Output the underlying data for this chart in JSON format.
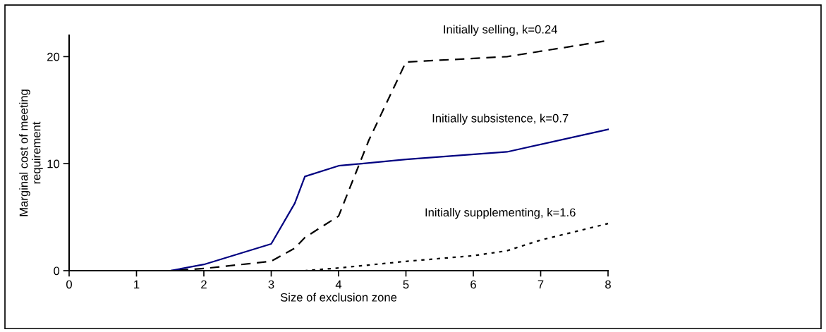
{
  "chart_data": {
    "type": "line",
    "xlabel": "Size of exclusion zone",
    "ylabel": "Marginal cost of meeting\nrequirement",
    "xlim": [
      0,
      8
    ],
    "xticks": [
      0,
      1,
      2,
      3,
      4,
      5,
      6,
      7,
      8
    ],
    "ylim": [
      0,
      22
    ],
    "yticks": [
      0,
      10,
      20
    ],
    "grid": false,
    "legend": false,
    "series": [
      {
        "name": "Initially selling, k=0.24",
        "color": "#000000",
        "line_style": "dashed",
        "x": [
          0,
          1,
          1.5,
          2,
          3,
          3.35,
          3.5,
          4,
          4.45,
          5,
          6.5,
          8
        ],
        "values": [
          0,
          0,
          0,
          0.2,
          0.88,
          2.1,
          3.1,
          5.1,
          12.2,
          19.5,
          20.0,
          21.5
        ]
      },
      {
        "name": "Initially subsistence, k=0.7",
        "color": "#000080",
        "line_style": "solid",
        "x": [
          0,
          1,
          1.5,
          2,
          3,
          3.35,
          3.5,
          4,
          5,
          6.5,
          8
        ],
        "values": [
          0,
          0,
          0,
          0.58,
          2.5,
          6.3,
          8.8,
          9.8,
          10.4,
          11.1,
          13.2
        ]
      },
      {
        "name": "Initially supplementing, k=1.6",
        "color": "#000000",
        "line_style": "dotted",
        "x": [
          0,
          1,
          2,
          3,
          3.5,
          4,
          5,
          6,
          6.5,
          7,
          8
        ],
        "values": [
          0,
          0,
          0,
          0,
          0,
          0.25,
          0.87,
          1.4,
          1.86,
          2.86,
          4.4
        ]
      }
    ]
  }
}
